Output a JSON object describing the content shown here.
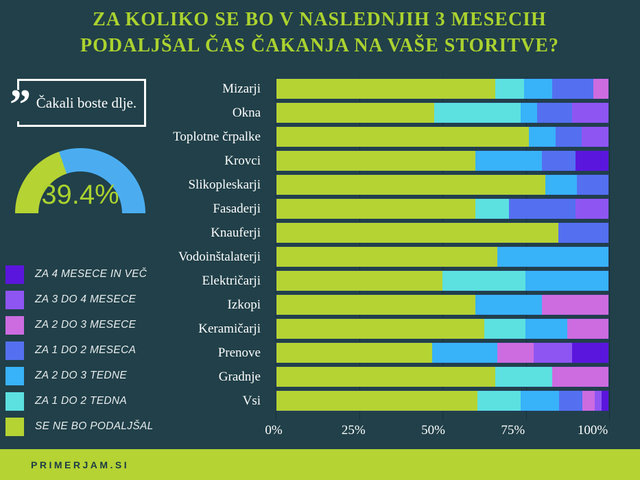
{
  "title": "ZA KOLIKO SE BO V NASLEDNJIH 3 MESECIH PODALJŠAL ČAS ČAKANJA NA VAŠE STORITVE?",
  "quote": {
    "mark": "”",
    "text": "Čakali boste dlje."
  },
  "gauge": {
    "percent": 39.4,
    "value_label": "39.4%",
    "filled_color": "#b5d333",
    "rest_color": "#4badf0"
  },
  "footer": {
    "brand": "PRIMERJAM.SI"
  },
  "colors": {
    "background": "#214049",
    "title": "#abd22f",
    "text": "#ffffff",
    "footer_bg": "#b5d333"
  },
  "chart_data": {
    "type": "bar",
    "orientation": "horizontal",
    "stacked": true,
    "unit": "%",
    "xlim": [
      0,
      100
    ],
    "grid": true,
    "legend_position": "left",
    "x_ticks": [
      "0%",
      "25%",
      "50%",
      "75%",
      "100%"
    ],
    "categories": [
      "Mizarji",
      "Okna",
      "Toplotne črpalke",
      "Krovci",
      "Slikopleskarji",
      "Fasaderji",
      "Knauferji",
      "Vodoinštalaterji",
      "Električarji",
      "Izkopi",
      "Keramičarji",
      "Prenove",
      "Gradnje",
      "Vsi"
    ],
    "series": [
      {
        "name": "SE NE BO PODALJŠAL",
        "color": "#b5d333",
        "values": [
          66,
          47.5,
          76,
          60,
          81,
          60,
          85,
          66.5,
          50,
          60,
          62.5,
          47,
          66,
          60.6
        ]
      },
      {
        "name": "ZA 1 DO 2 TEDNA",
        "color": "#5ce0e0",
        "values": [
          8.5,
          26,
          0,
          0,
          0,
          10,
          0,
          0,
          25,
          0,
          12.5,
          0,
          17,
          13
        ]
      },
      {
        "name": "ZA 2 DO 3 TEDNE",
        "color": "#38b2f8",
        "values": [
          8.5,
          5,
          8,
          20,
          9.5,
          0,
          0,
          33.5,
          25,
          20,
          12.5,
          19.5,
          0,
          11.6
        ]
      },
      {
        "name": "ZA 1 DO 2 MESECA",
        "color": "#5470f0",
        "values": [
          12.5,
          10.5,
          8,
          10,
          9.5,
          20,
          15,
          0,
          0,
          0,
          0,
          0,
          0,
          6.9
        ]
      },
      {
        "name": "ZA 2 DO 3 MESECE",
        "color": "#cc6ce0",
        "values": [
          4.5,
          0,
          0,
          0,
          0,
          0,
          0,
          0,
          0,
          20,
          12.5,
          11,
          17,
          3.7
        ]
      },
      {
        "name": "ZA 3 DO 4 MESECE",
        "color": "#8f55f2",
        "values": [
          0,
          11,
          8,
          0,
          0,
          10,
          0,
          0,
          0,
          0,
          0,
          11.5,
          0,
          2.2
        ]
      },
      {
        "name": "ZA 4 MESECE IN VEČ",
        "color": "#5b16dd",
        "values": [
          0,
          0,
          0,
          10,
          0,
          0,
          0,
          0,
          0,
          0,
          0,
          11,
          0,
          2
        ]
      }
    ]
  }
}
